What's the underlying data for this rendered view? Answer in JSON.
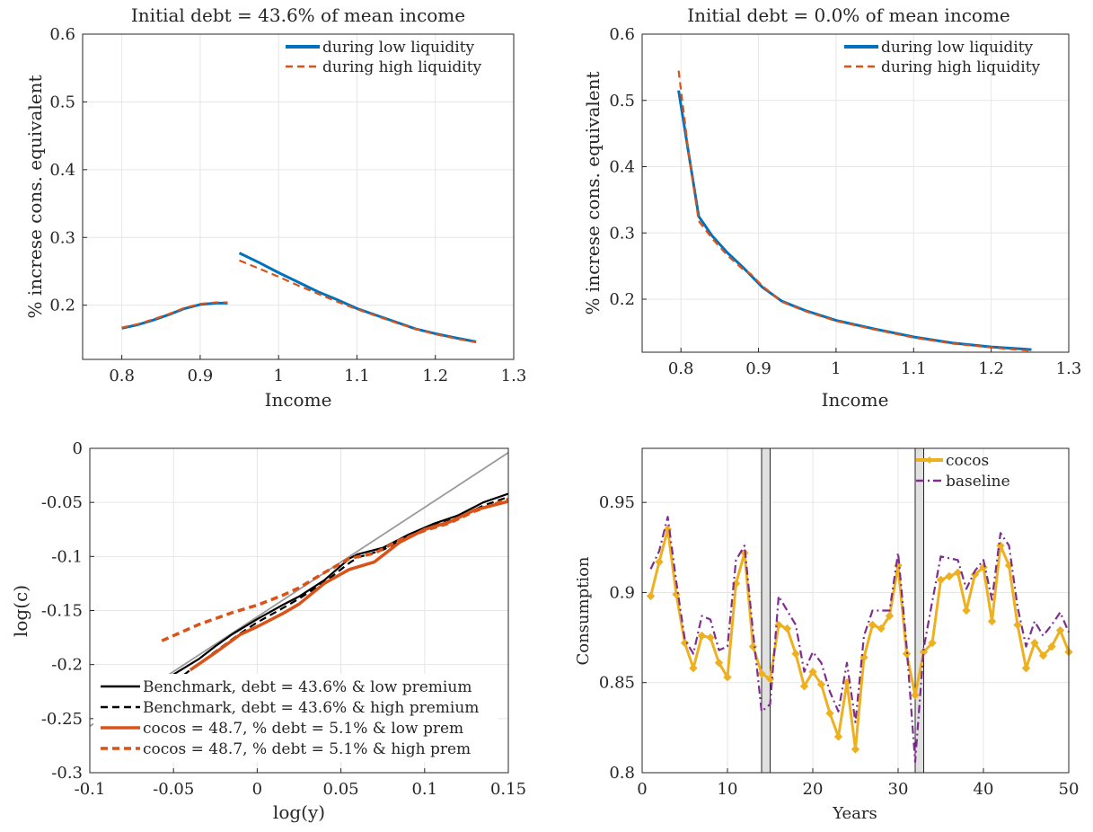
{
  "chart_data": [
    {
      "type": "line",
      "title": "Initial debt = 43.6% of mean income",
      "xlabel": "Income",
      "ylabel": "% increse cons. equivalent",
      "xlim": [
        0.75,
        1.3
      ],
      "ylim": [
        0.12,
        0.6
      ],
      "xticks": [
        "0.8",
        "0.9",
        "1",
        "1.1",
        "1.2",
        "1.3"
      ],
      "yticks": [
        "0.2",
        "0.3",
        "0.4",
        "0.5",
        "0.6"
      ],
      "grid": true,
      "legend_position": "top-right",
      "series": [
        {
          "name": "during low liquidity",
          "color": "#0072BD",
          "dash": "solid",
          "segments": [
            [
              [
                0.8,
                0.166
              ],
              [
                0.82,
                0.171
              ],
              [
                0.84,
                0.178
              ],
              [
                0.86,
                0.186
              ],
              [
                0.88,
                0.195
              ],
              [
                0.9,
                0.201
              ],
              [
                0.92,
                0.203
              ],
              [
                0.935,
                0.203
              ]
            ],
            [
              [
                0.95,
                0.277
              ],
              [
                0.975,
                0.263
              ],
              [
                1.0,
                0.248
              ],
              [
                1.025,
                0.234
              ],
              [
                1.05,
                0.22
              ],
              [
                1.075,
                0.208
              ],
              [
                1.1,
                0.195
              ],
              [
                1.125,
                0.185
              ],
              [
                1.15,
                0.175
              ],
              [
                1.175,
                0.165
              ],
              [
                1.2,
                0.158
              ],
              [
                1.225,
                0.152
              ],
              [
                1.252,
                0.146
              ]
            ]
          ]
        },
        {
          "name": "during high liquidity",
          "color": "#D95319",
          "dash": "dashed",
          "segments": [
            [
              [
                0.8,
                0.167
              ],
              [
                0.82,
                0.172
              ],
              [
                0.84,
                0.179
              ],
              [
                0.86,
                0.187
              ],
              [
                0.88,
                0.196
              ],
              [
                0.9,
                0.202
              ],
              [
                0.92,
                0.204
              ],
              [
                0.935,
                0.204
              ]
            ],
            [
              [
                0.95,
                0.266
              ],
              [
                0.975,
                0.254
              ],
              [
                1.0,
                0.242
              ],
              [
                1.025,
                0.229
              ],
              [
                1.05,
                0.217
              ],
              [
                1.075,
                0.205
              ],
              [
                1.1,
                0.194
              ],
              [
                1.125,
                0.184
              ],
              [
                1.15,
                0.174
              ],
              [
                1.175,
                0.165
              ],
              [
                1.2,
                0.157
              ],
              [
                1.225,
                0.151
              ],
              [
                1.252,
                0.145
              ]
            ]
          ]
        }
      ]
    },
    {
      "type": "line",
      "title": "Initial debt = 0.0% of mean income",
      "xlabel": "Income",
      "ylabel": "% increse cons. equivalent",
      "xlim": [
        0.75,
        1.3
      ],
      "ylim": [
        0.12,
        0.6
      ],
      "xticks": [
        "0.8",
        "0.9",
        "1",
        "1.1",
        "1.2",
        "1.3"
      ],
      "yticks": [
        "0.2",
        "0.3",
        "0.4",
        "0.5",
        "0.6"
      ],
      "grid": true,
      "legend_position": "top-right",
      "series": [
        {
          "name": "during low liquidity",
          "color": "#0072BD",
          "dash": "solid",
          "segments": [
            [
              [
                0.797,
                0.515
              ],
              [
                0.81,
                0.42
              ],
              [
                0.823,
                0.325
              ],
              [
                0.84,
                0.296
              ],
              [
                0.86,
                0.27
              ],
              [
                0.88,
                0.248
              ],
              [
                0.905,
                0.218
              ],
              [
                0.93,
                0.197
              ],
              [
                0.96,
                0.183
              ],
              [
                1.0,
                0.168
              ],
              [
                1.05,
                0.155
              ],
              [
                1.1,
                0.143
              ],
              [
                1.15,
                0.134
              ],
              [
                1.2,
                0.128
              ],
              [
                1.252,
                0.124
              ]
            ]
          ]
        },
        {
          "name": "during high liquidity",
          "color": "#D95319",
          "dash": "dashed",
          "segments": [
            [
              [
                0.797,
                0.545
              ],
              [
                0.81,
                0.42
              ],
              [
                0.823,
                0.318
              ],
              [
                0.84,
                0.292
              ],
              [
                0.86,
                0.266
              ],
              [
                0.88,
                0.245
              ],
              [
                0.89,
                0.238
              ],
              [
                0.905,
                0.22
              ],
              [
                0.93,
                0.196
              ],
              [
                0.96,
                0.182
              ],
              [
                1.0,
                0.167
              ],
              [
                1.05,
                0.154
              ],
              [
                1.1,
                0.142
              ],
              [
                1.15,
                0.133
              ],
              [
                1.2,
                0.127
              ],
              [
                1.252,
                0.122
              ]
            ]
          ]
        }
      ]
    },
    {
      "type": "line",
      "title": "",
      "xlabel": "log(y)",
      "ylabel": "log(c)",
      "xlim": [
        -0.1,
        0.15
      ],
      "ylim": [
        -0.3,
        0
      ],
      "xticks": [
        "-0.1",
        "-0.05",
        "0",
        "0.05",
        "0.1",
        "0.15"
      ],
      "yticks": [
        "-0.3",
        "-0.25",
        "-0.2",
        "-0.15",
        "-0.1",
        "-0.05",
        "0"
      ],
      "grid": true,
      "legend_position": "bottom-left",
      "series": [
        {
          "name": "",
          "color": "#999999",
          "dash": "solid",
          "width": 1.8,
          "segments": [
            [
              [
                -0.1,
                -0.257
              ],
              [
                0.15,
                -0.004
              ]
            ]
          ]
        },
        {
          "name": "Benchmark, debt = 43.6% & low premium",
          "color": "#000000",
          "dash": "solid",
          "width": 2.2,
          "segments": [
            [
              [
                -0.052,
                -0.211
              ],
              [
                -0.035,
                -0.195
              ],
              [
                -0.025,
                -0.183
              ],
              [
                -0.015,
                -0.172
              ],
              [
                0,
                -0.158
              ],
              [
                0.015,
                -0.145
              ],
              [
                0.025,
                -0.137
              ],
              [
                0.04,
                -0.122
              ],
              [
                0.055,
                -0.102
              ],
              [
                0.06,
                -0.098
              ],
              [
                0.075,
                -0.092
              ],
              [
                0.09,
                -0.08
              ],
              [
                0.105,
                -0.07
              ],
              [
                0.12,
                -0.062
              ],
              [
                0.135,
                -0.05
              ],
              [
                0.15,
                -0.042
              ]
            ]
          ]
        },
        {
          "name": "Benchmark, debt = 43.6% & high premium",
          "color": "#000000",
          "dash": "dashed",
          "width": 2.2,
          "segments": [
            [
              [
                -0.055,
                -0.223
              ],
              [
                -0.04,
                -0.205
              ],
              [
                -0.025,
                -0.188
              ],
              [
                -0.01,
                -0.171
              ],
              [
                0,
                -0.161
              ],
              [
                0.015,
                -0.148
              ],
              [
                0.025,
                -0.139
              ],
              [
                0.04,
                -0.124
              ],
              [
                0.055,
                -0.106
              ],
              [
                0.06,
                -0.101
              ],
              [
                0.075,
                -0.094
              ],
              [
                0.09,
                -0.082
              ],
              [
                0.105,
                -0.072
              ],
              [
                0.12,
                -0.064
              ],
              [
                0.135,
                -0.053
              ],
              [
                0.15,
                -0.045
              ]
            ]
          ]
        },
        {
          "name": "cocos = 48.7, % debt = 5.1% & low prem",
          "color": "#D95319",
          "dash": "solid",
          "width": 3.5,
          "segments": [
            [
              [
                -0.04,
                -0.205
              ],
              [
                -0.025,
                -0.189
              ],
              [
                -0.01,
                -0.172
              ],
              [
                0,
                -0.165
              ],
              [
                0.015,
                -0.153
              ],
              [
                0.025,
                -0.144
              ],
              [
                0.04,
                -0.125
              ],
              [
                0.055,
                -0.112
              ],
              [
                0.07,
                -0.105
              ],
              [
                0.085,
                -0.087
              ],
              [
                0.1,
                -0.075
              ],
              [
                0.115,
                -0.068
              ],
              [
                0.13,
                -0.057
              ],
              [
                0.15,
                -0.049
              ]
            ]
          ]
        },
        {
          "name": "cocos = 48.7, % debt = 5.1% & high prem",
          "color": "#D95319",
          "dash": "dashed",
          "width": 3.5,
          "segments": [
            [
              [
                -0.057,
                -0.178
              ],
              [
                -0.035,
                -0.163
              ],
              [
                -0.015,
                -0.152
              ],
              [
                0,
                -0.145
              ],
              [
                0.015,
                -0.136
              ],
              [
                0.025,
                -0.129
              ],
              [
                0.04,
                -0.115
              ],
              [
                0.055,
                -0.102
              ],
              [
                0.07,
                -0.097
              ],
              [
                0.085,
                -0.085
              ],
              [
                0.1,
                -0.076
              ],
              [
                0.115,
                -0.069
              ],
              [
                0.13,
                -0.058
              ],
              [
                0.15,
                -0.047
              ]
            ]
          ]
        }
      ]
    },
    {
      "type": "line",
      "title": "",
      "xlabel": "Years",
      "ylabel": "Consumption",
      "xlim": [
        0,
        50
      ],
      "ylim": [
        0.8,
        0.98
      ],
      "xticks": [
        "0",
        "10",
        "20",
        "30",
        "40",
        "50"
      ],
      "yticks": [
        "0.8",
        "0.85",
        "0.9",
        "0.95"
      ],
      "grid": true,
      "legend_position": "top-right",
      "shaded_periods": [
        [
          14,
          15
        ],
        [
          32,
          33
        ]
      ],
      "series": [
        {
          "name": "cocos",
          "color": "#EDB120",
          "dash": "solid",
          "marker": "diamond",
          "x": [
            1,
            2,
            3,
            4,
            5,
            6,
            7,
            8,
            9,
            10,
            11,
            12,
            13,
            14,
            15,
            16,
            17,
            18,
            19,
            20,
            21,
            22,
            23,
            24,
            25,
            26,
            27,
            28,
            29,
            30,
            31,
            32,
            33,
            34,
            35,
            36,
            37,
            38,
            39,
            40,
            41,
            42,
            43,
            44,
            45,
            46,
            47,
            48,
            49,
            50
          ],
          "values": [
            0.898,
            0.917,
            0.935,
            0.899,
            0.872,
            0.858,
            0.876,
            0.875,
            0.861,
            0.853,
            0.905,
            0.922,
            0.87,
            0.855,
            0.852,
            0.882,
            0.88,
            0.866,
            0.848,
            0.856,
            0.849,
            0.833,
            0.82,
            0.85,
            0.813,
            0.864,
            0.882,
            0.88,
            0.887,
            0.915,
            0.866,
            0.843,
            0.867,
            0.872,
            0.907,
            0.909,
            0.911,
            0.89,
            0.91,
            0.914,
            0.884,
            0.926,
            0.915,
            0.882,
            0.858,
            0.872,
            0.865,
            0.87,
            0.879,
            0.867
          ]
        },
        {
          "name": "baseline",
          "color": "#7E2F8E",
          "dash": "dashdot",
          "x": [
            1,
            2,
            3,
            4,
            5,
            6,
            7,
            8,
            9,
            10,
            11,
            12,
            13,
            14,
            15,
            16,
            17,
            18,
            19,
            20,
            21,
            22,
            23,
            24,
            25,
            26,
            27,
            28,
            29,
            30,
            31,
            32,
            33,
            34,
            35,
            36,
            37,
            38,
            39,
            40,
            41,
            42,
            43,
            44,
            45,
            46,
            47,
            48,
            49,
            50
          ],
          "values": [
            0.913,
            0.923,
            0.942,
            0.906,
            0.874,
            0.866,
            0.887,
            0.885,
            0.868,
            0.87,
            0.918,
            0.926,
            0.878,
            0.834,
            0.838,
            0.898,
            0.89,
            0.882,
            0.856,
            0.867,
            0.861,
            0.845,
            0.834,
            0.861,
            0.828,
            0.876,
            0.89,
            0.89,
            0.89,
            0.922,
            0.87,
            0.806,
            0.869,
            0.895,
            0.92,
            0.919,
            0.918,
            0.902,
            0.912,
            0.918,
            0.896,
            0.933,
            0.926,
            0.892,
            0.87,
            0.884,
            0.876,
            0.882,
            0.889,
            0.878
          ]
        }
      ]
    }
  ]
}
